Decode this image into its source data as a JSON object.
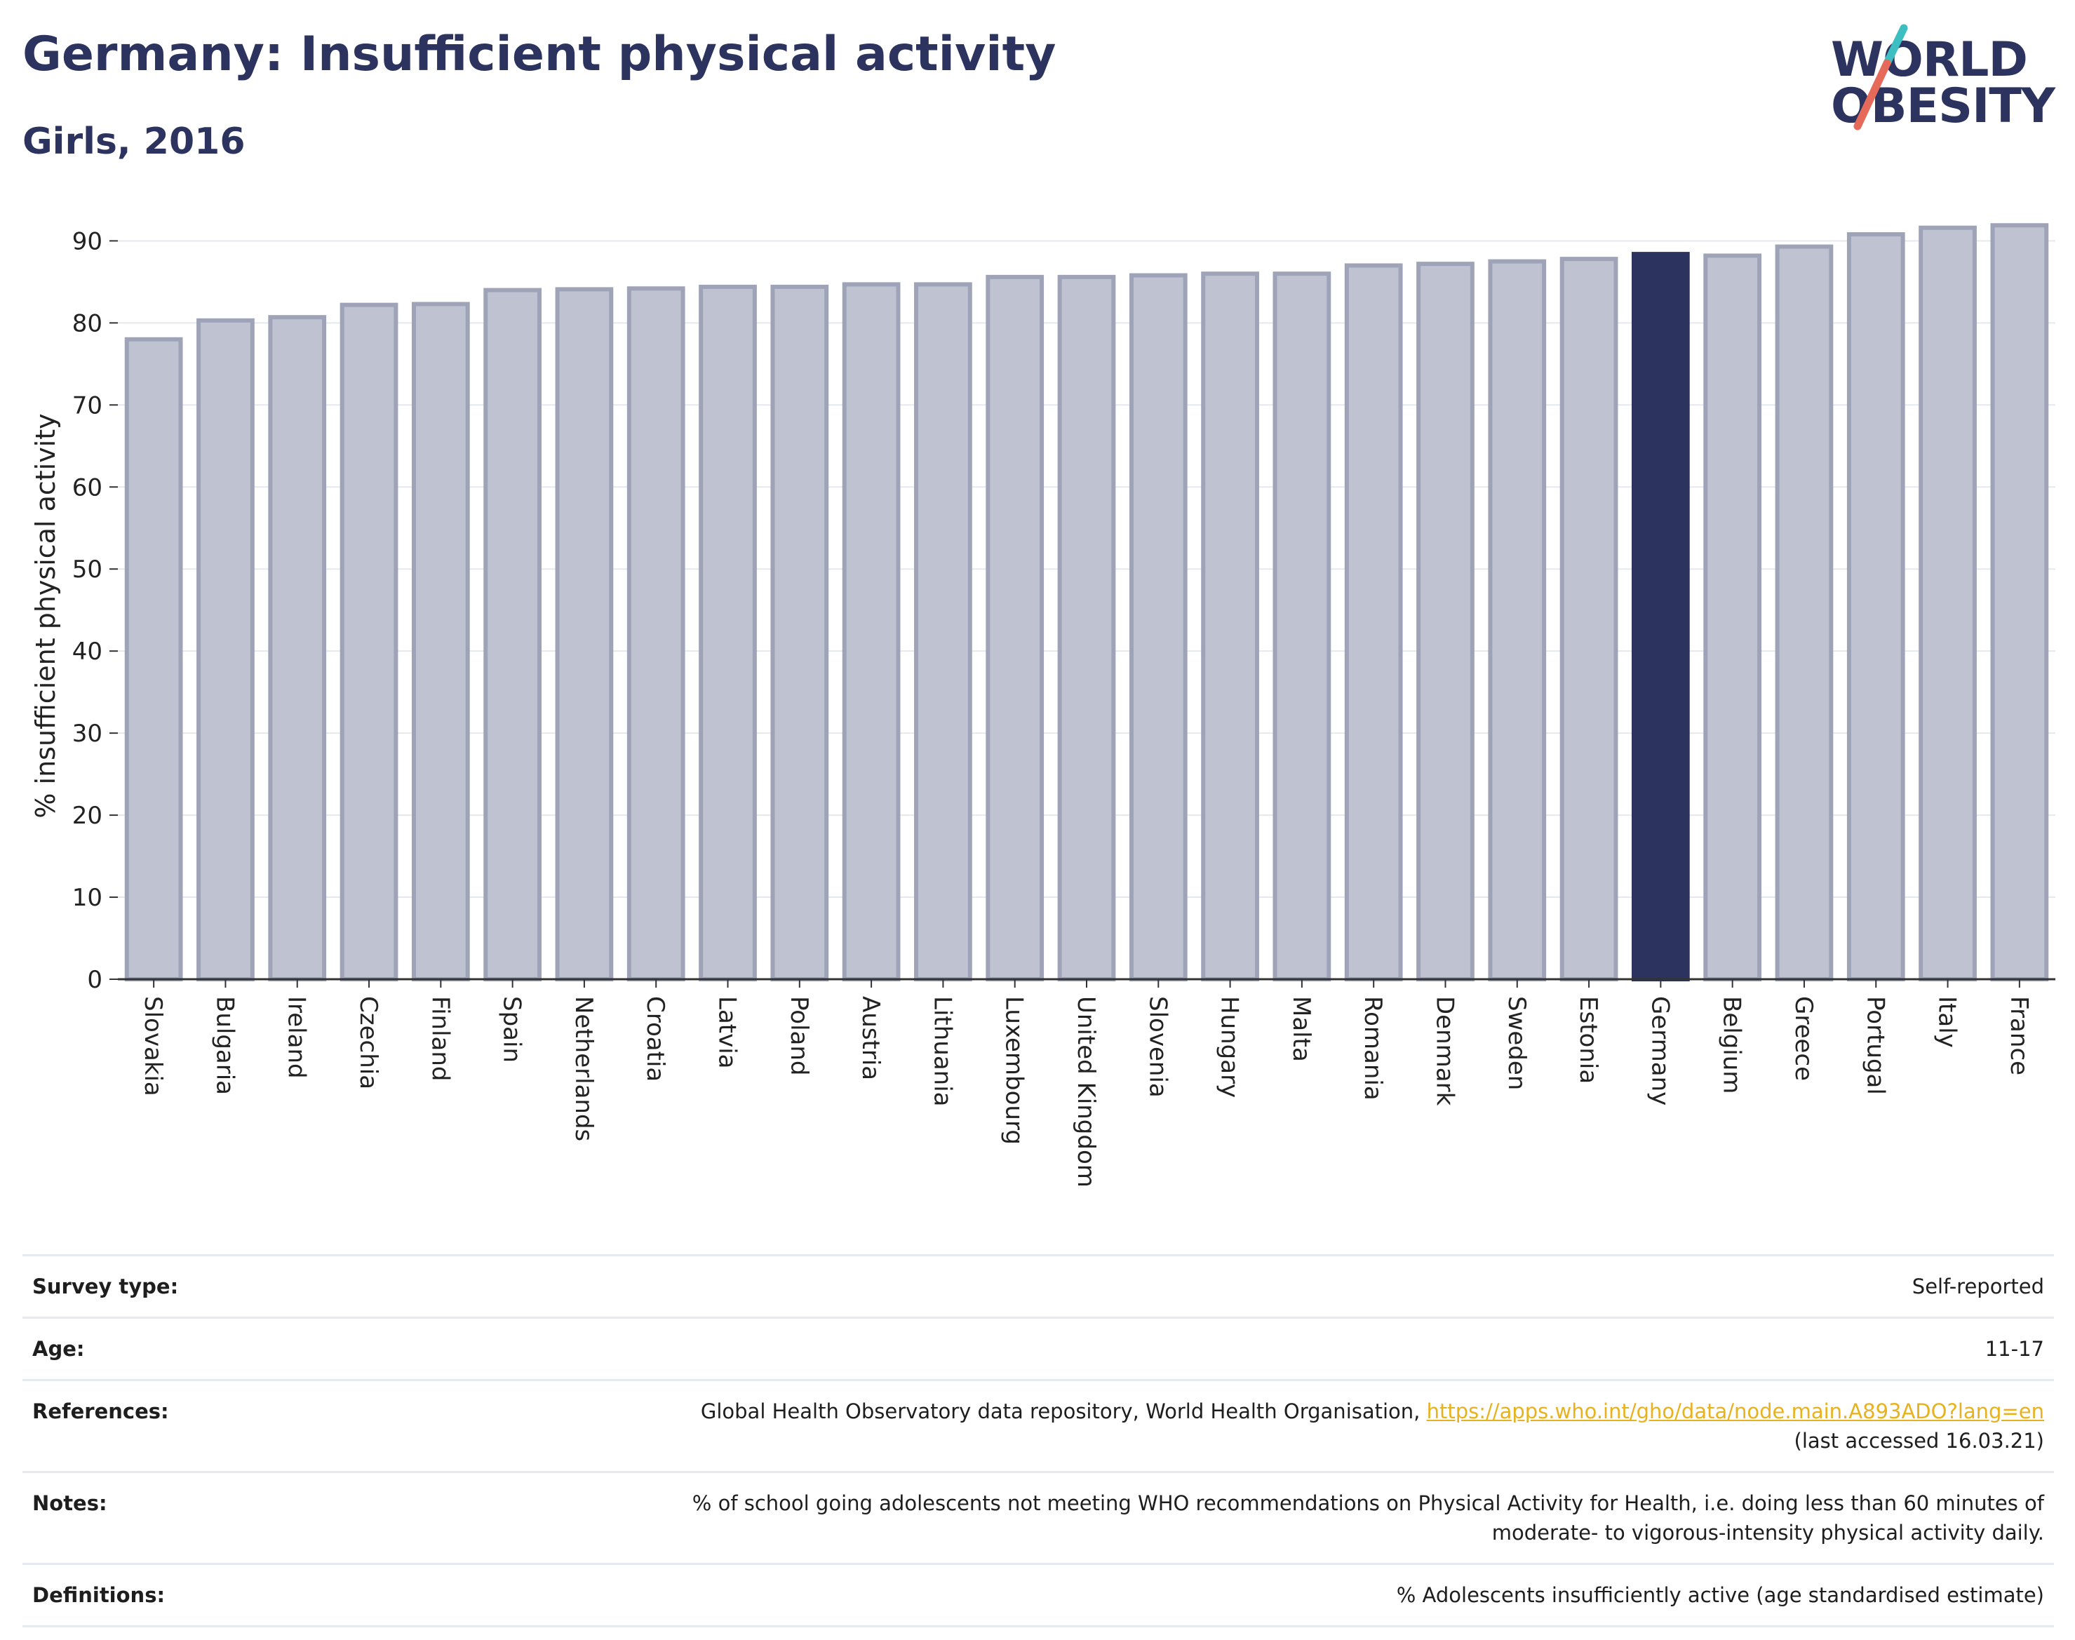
{
  "header": {
    "title": "Germany: Insufficient physical activity",
    "subtitle": "Girls, 2016"
  },
  "logo": {
    "line1": "WORLD",
    "line2": "OBESITY",
    "slash_colors": [
      "#3dbfc1",
      "#e56a59"
    ]
  },
  "chart_data": {
    "type": "bar",
    "title": "",
    "xlabel": "",
    "ylabel": "% insufficient physical activity",
    "ylim": [
      0,
      92
    ],
    "yticks": [
      0,
      10,
      20,
      30,
      40,
      50,
      60,
      70,
      80,
      90
    ],
    "grid": true,
    "highlight": "Germany",
    "colors": {
      "default_bar": "#bfc2d0",
      "bar_outline": "#9ea3b8",
      "highlight_bar": "#2b335e"
    },
    "categories": [
      "Slovakia",
      "Bulgaria",
      "Ireland",
      "Czechia",
      "Finland",
      "Spain",
      "Netherlands",
      "Croatia",
      "Latvia",
      "Poland",
      "Austria",
      "Lithuania",
      "Luxembourg",
      "United Kingdom",
      "Slovenia",
      "Hungary",
      "Malta",
      "Romania",
      "Denmark",
      "Sweden",
      "Estonia",
      "Germany",
      "Belgium",
      "Greece",
      "Portugal",
      "Italy",
      "France"
    ],
    "values": [
      78.0,
      80.3,
      80.7,
      82.2,
      82.3,
      84.0,
      84.1,
      84.2,
      84.4,
      84.4,
      84.7,
      84.7,
      85.6,
      85.6,
      85.8,
      86.0,
      86.0,
      87.0,
      87.2,
      87.5,
      87.8,
      88.4,
      88.2,
      89.3,
      90.8,
      91.6,
      91.9
    ]
  },
  "info": {
    "survey_type": {
      "label": "Survey type:",
      "value": "Self-reported"
    },
    "age": {
      "label": "Age:",
      "value": "11-17"
    },
    "references": {
      "label": "References:",
      "text": "Global Health Observatory data repository, World Health Organisation, ",
      "link": "https://apps.who.int/gho/data/node.main.A893ADO?lang=en",
      "accessed": "(last accessed 16.03.21)"
    },
    "notes": {
      "label": "Notes:",
      "line1": "% of school going adolescents not meeting WHO recommendations on Physical Activity for Health, i.e. doing less than 60 minutes of",
      "line2": "moderate- to vigorous-intensity physical activity daily."
    },
    "definitions": {
      "label": "Definitions:",
      "value": "% Adolescents insufficiently active (age standardised estimate)"
    }
  }
}
